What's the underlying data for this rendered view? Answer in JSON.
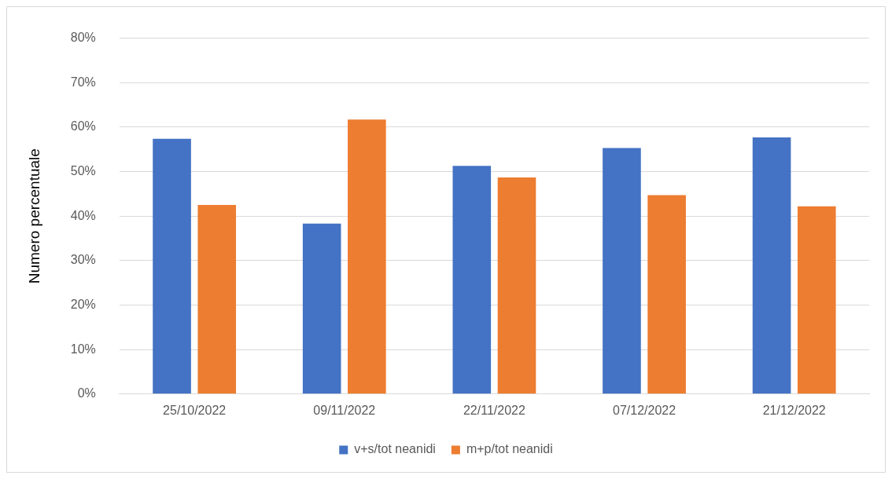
{
  "chart_data": {
    "type": "bar",
    "ylabel": "Numero percentuale",
    "categories": [
      "25/10/2022",
      "09/11/2022",
      "22/11/2022",
      "07/12/2022",
      "21/12/2022"
    ],
    "series": [
      {
        "name": "v+s/tot neanidi",
        "color": "#4472c4",
        "values": [
          57.4,
          38.3,
          51.3,
          55.3,
          57.7
        ]
      },
      {
        "name": "m+p/tot neanidi",
        "color": "#ed7d31",
        "values": [
          42.5,
          61.7,
          48.7,
          44.7,
          42.2
        ]
      }
    ],
    "ylim": [
      0,
      80
    ],
    "yticks": [
      {
        "value": 0,
        "label": "0%"
      },
      {
        "value": 10,
        "label": "10%"
      },
      {
        "value": 20,
        "label": "20%"
      },
      {
        "value": 30,
        "label": "30%"
      },
      {
        "value": 40,
        "label": "40%"
      },
      {
        "value": 50,
        "label": "50%"
      },
      {
        "value": 60,
        "label": "60%"
      },
      {
        "value": 70,
        "label": "70%"
      },
      {
        "value": 80,
        "label": "80%"
      }
    ],
    "grid": "y",
    "legend": "bottom"
  }
}
